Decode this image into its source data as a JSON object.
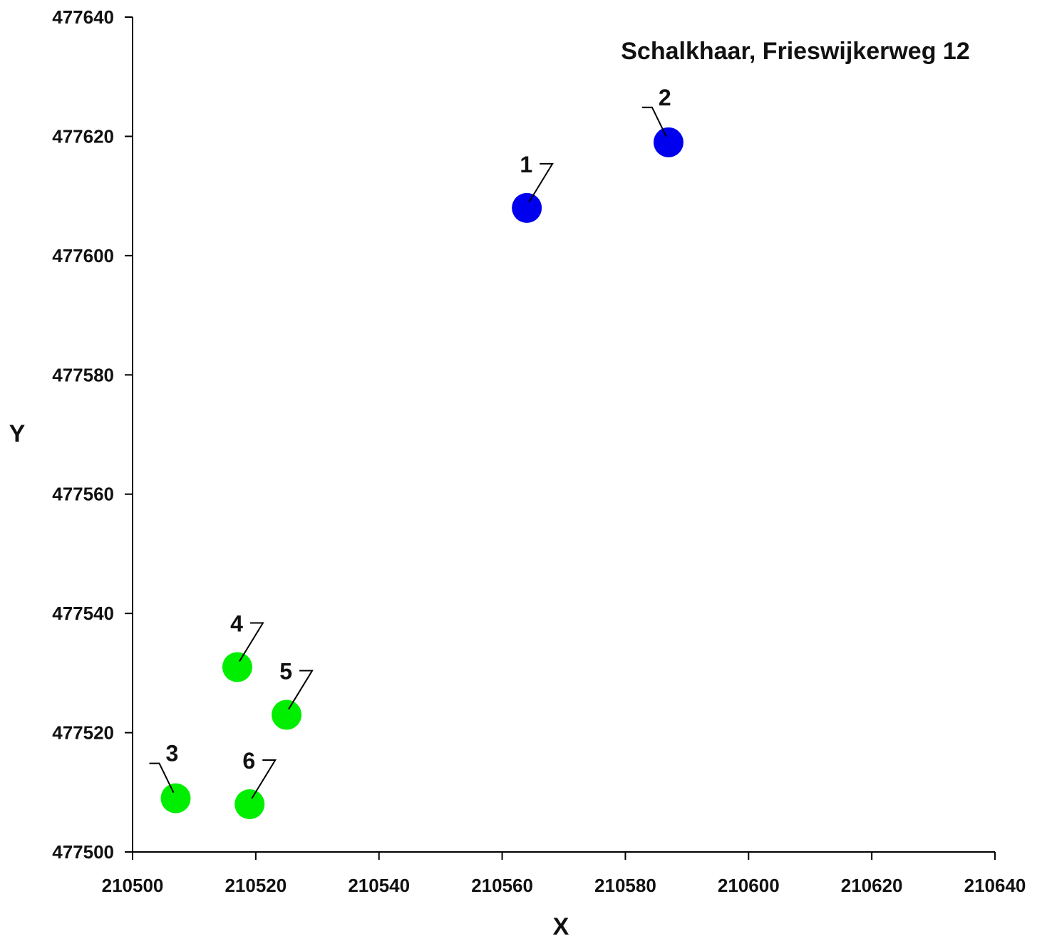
{
  "chart_data": {
    "type": "scatter",
    "title": "Schalkhaar, Frieswijkerweg 12",
    "xlabel": "X",
    "ylabel": "Y",
    "xlim": [
      210500,
      210640
    ],
    "ylim": [
      477500,
      477640
    ],
    "x_ticks": [
      "210500",
      "210520",
      "210540",
      "210560",
      "210580",
      "210600",
      "210620",
      "210640"
    ],
    "y_ticks": [
      "477500",
      "477520",
      "477540",
      "477560",
      "477580",
      "477600",
      "477620",
      "477640"
    ],
    "grid": false,
    "legend": "none",
    "colors": {
      "blue": "#0000ee",
      "green": "#00ee00",
      "axis": "#000000",
      "text": "#111111"
    },
    "points": [
      {
        "label": "1",
        "x": 210564,
        "y": 477608,
        "color": "blue"
      },
      {
        "label": "2",
        "x": 210587,
        "y": 477619,
        "color": "blue"
      },
      {
        "label": "3",
        "x": 210507,
        "y": 477509,
        "color": "green"
      },
      {
        "label": "4",
        "x": 210517,
        "y": 477531,
        "color": "green"
      },
      {
        "label": "5",
        "x": 210525,
        "y": 477523,
        "color": "green"
      },
      {
        "label": "6",
        "x": 210519,
        "y": 477508,
        "color": "green"
      }
    ]
  }
}
